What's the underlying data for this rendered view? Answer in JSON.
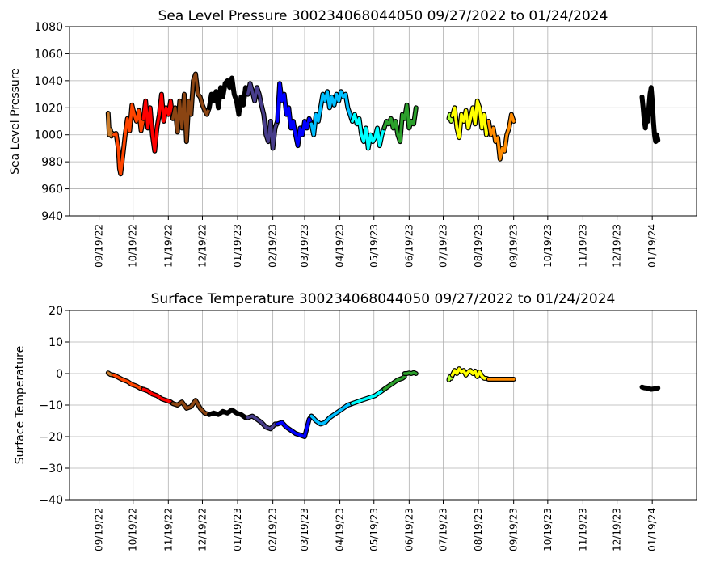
{
  "chart_data": [
    {
      "type": "line",
      "title": "Sea Level Pressure 300234068044050  09/27/2022 to 01/24/2024",
      "ylabel": "Sea Level Pressure",
      "xlabel": "",
      "ylim": [
        940,
        1080
      ],
      "yticks": [
        940,
        960,
        980,
        1000,
        1020,
        1040,
        1060,
        1080
      ],
      "xticks": [
        "09/19/22",
        "10/19/22",
        "11/19/22",
        "12/19/22",
        "01/19/23",
        "02/19/23",
        "03/19/23",
        "04/19/23",
        "05/19/23",
        "06/19/23",
        "07/19/23",
        "08/19/23",
        "09/19/23",
        "10/19/23",
        "11/19/23",
        "12/19/23",
        "01/19/24"
      ],
      "grid": true,
      "series": [
        {
          "color": "#c97b2a",
          "x": [
            "09/27/22",
            "09/28/22",
            "09/29/22",
            "09/30/22",
            "10/01/22",
            "10/02/22"
          ],
          "y": [
            1016,
            1000,
            1004,
            999,
            1001,
            1000
          ]
        },
        {
          "color": "#ff4500",
          "x": [
            "10/02/22",
            "10/04/22",
            "10/06/22",
            "10/07/22",
            "10/08/22",
            "10/10/22",
            "10/12/22",
            "10/14/22",
            "10/16/22",
            "10/18/22",
            "10/20/22",
            "10/22/22",
            "10/24/22",
            "10/26/22",
            "10/28/22"
          ],
          "y": [
            1000,
            1001,
            990,
            975,
            971,
            985,
            1000,
            1012,
            1003,
            1022,
            1015,
            1010,
            1018,
            1003,
            1012
          ]
        },
        {
          "color": "#ff0000",
          "x": [
            "10/28/22",
            "10/30/22",
            "11/01/22",
            "11/03/22",
            "11/05/22",
            "11/07/22",
            "11/09/22",
            "11/11/22",
            "11/13/22",
            "11/15/22",
            "11/17/22",
            "11/19/22",
            "11/21/22",
            "11/23/22"
          ],
          "y": [
            1012,
            1025,
            1005,
            1020,
            1000,
            988,
            1005,
            1015,
            1030,
            1010,
            1020,
            1015,
            1025,
            1012
          ]
        },
        {
          "color": "#8b4513",
          "x": [
            "11/23/22",
            "11/25/22",
            "11/27/22",
            "11/29/22",
            "12/01/22",
            "12/03/22",
            "12/05/22",
            "12/07/22",
            "12/09/22",
            "12/11/22",
            "12/13/22",
            "12/15/22",
            "12/17/22",
            "12/19/22",
            "12/21/22",
            "12/23/22",
            "12/25/22"
          ],
          "y": [
            1012,
            1020,
            1002,
            1025,
            1005,
            1030,
            995,
            1025,
            1015,
            1040,
            1045,
            1030,
            1028,
            1022,
            1018,
            1015,
            1020
          ]
        },
        {
          "color": "#000000",
          "x": [
            "12/25/22",
            "12/27/22",
            "12/29/22",
            "12/31/22",
            "01/02/23",
            "01/04/23",
            "01/06/23",
            "01/08/23",
            "01/10/23",
            "01/12/23",
            "01/14/23",
            "01/16/23",
            "01/18/23",
            "01/20/23",
            "01/22/23",
            "01/24/23",
            "01/26/23",
            "01/28/23"
          ],
          "y": [
            1020,
            1030,
            1025,
            1032,
            1020,
            1035,
            1028,
            1038,
            1040,
            1035,
            1042,
            1030,
            1025,
            1015,
            1028,
            1022,
            1035,
            1030
          ]
        },
        {
          "color": "#483d8b",
          "x": [
            "01/28/23",
            "01/30/23",
            "02/01/23",
            "02/03/23",
            "02/05/23",
            "02/07/23",
            "02/09/23",
            "02/11/23",
            "02/13/23",
            "02/15/23",
            "02/17/23",
            "02/19/23",
            "02/21/23",
            "02/23/23"
          ],
          "y": [
            1030,
            1038,
            1032,
            1025,
            1035,
            1030,
            1022,
            1015,
            1000,
            995,
            1010,
            990,
            1005,
            1010
          ]
        },
        {
          "color": "#0000ff",
          "x": [
            "02/23/23",
            "02/25/23",
            "02/27/23",
            "03/01/23",
            "03/03/23",
            "03/05/23",
            "03/07/23",
            "03/09/23",
            "03/11/23",
            "03/13/23",
            "03/15/23",
            "03/17/23",
            "03/19/23",
            "03/21/23",
            "03/23/23",
            "03/25/23"
          ],
          "y": [
            1010,
            1038,
            1025,
            1030,
            1015,
            1020,
            1005,
            1010,
            1000,
            992,
            1005,
            1000,
            1010,
            1005,
            1012,
            1008
          ]
        },
        {
          "color": "#00bfff",
          "x": [
            "03/25/23",
            "03/27/23",
            "03/29/23",
            "03/31/23",
            "04/02/23",
            "04/04/23",
            "04/06/23",
            "04/08/23",
            "04/10/23",
            "04/12/23",
            "04/14/23",
            "04/16/23",
            "04/18/23",
            "04/20/23",
            "04/22/23",
            "04/24/23",
            "04/26/23",
            "04/28/23",
            "04/30/23"
          ],
          "y": [
            1008,
            1000,
            1015,
            1010,
            1020,
            1030,
            1025,
            1032,
            1020,
            1028,
            1022,
            1030,
            1025,
            1032,
            1028,
            1030,
            1020,
            1015,
            1010
          ]
        },
        {
          "color": "#00ffff",
          "x": [
            "04/30/23",
            "05/02/23",
            "05/04/23",
            "05/06/23",
            "05/08/23",
            "05/10/23",
            "05/12/23",
            "05/14/23",
            "05/16/23",
            "05/18/23",
            "05/20/23",
            "05/22/23",
            "05/24/23",
            "05/26/23",
            "05/28/23"
          ],
          "y": [
            1010,
            1015,
            1008,
            1012,
            1000,
            995,
            1005,
            990,
            1000,
            995,
            998,
            1005,
            992,
            1000,
            1005
          ]
        },
        {
          "color": "#2ca02c",
          "x": [
            "05/28/23",
            "05/30/23",
            "06/01/23",
            "06/03/23",
            "06/05/23",
            "06/07/23",
            "06/09/23",
            "06/11/23",
            "06/13/23",
            "06/15/23",
            "06/17/23",
            "06/19/23",
            "06/21/23",
            "06/23/23",
            "06/25/23"
          ],
          "y": [
            1005,
            1010,
            1008,
            1012,
            1005,
            1010,
            1000,
            995,
            1015,
            1012,
            1022,
            1005,
            1010,
            1008,
            1020
          ]
        },
        {
          "color": "#adff2f",
          "x": [
            "07/24/23",
            "07/25/23",
            "07/26/23",
            "07/27/23"
          ],
          "y": [
            1012,
            1015,
            1010,
            1014
          ]
        },
        {
          "color": "#ffff00",
          "x": [
            "07/27/23",
            "07/29/23",
            "07/31/23",
            "08/02/23",
            "08/04/23",
            "08/06/23",
            "08/08/23",
            "08/10/23",
            "08/12/23",
            "08/14/23",
            "08/16/23",
            "08/18/23",
            "08/20/23",
            "08/22/23",
            "08/24/23",
            "08/26/23",
            "08/28/23"
          ],
          "y": [
            1014,
            1020,
            1005,
            998,
            1015,
            1010,
            1018,
            1005,
            1012,
            1020,
            1008,
            1025,
            1020,
            1005,
            1015,
            1000,
            1010
          ]
        },
        {
          "color": "#ff8c00",
          "x": [
            "08/28/23",
            "08/30/23",
            "09/01/23",
            "09/03/23",
            "09/05/23",
            "09/07/23",
            "09/09/23",
            "09/11/23",
            "09/13/23",
            "09/15/23",
            "09/17/23",
            "09/19/23"
          ],
          "y": [
            1010,
            1000,
            1005,
            995,
            998,
            982,
            990,
            988,
            1000,
            1005,
            1015,
            1010
          ]
        },
        {
          "color": "#000000",
          "x": [
            "01/10/24",
            "01/11/24",
            "01/12/24",
            "01/13/24",
            "01/14/24",
            "01/15/24",
            "01/16/24",
            "01/17/24",
            "01/18/24",
            "01/19/24",
            "01/20/24",
            "01/21/24",
            "01/22/24",
            "01/23/24",
            "01/24/24"
          ],
          "y": [
            1028,
            1020,
            1010,
            1005,
            1015,
            1010,
            1020,
            1030,
            1035,
            1025,
            1010,
            1000,
            995,
            1000,
            996
          ]
        }
      ]
    },
    {
      "type": "line",
      "title": "Surface Temperature 300234068044050  09/27/2022 to 01/24/2024",
      "ylabel": "Surface Temperature",
      "xlabel": "",
      "ylim": [
        -40,
        20
      ],
      "yticks": [
        -40,
        -30,
        -20,
        -10,
        0,
        10,
        20
      ],
      "xticks": [
        "09/19/22",
        "10/19/22",
        "11/19/22",
        "12/19/22",
        "01/19/23",
        "02/19/23",
        "03/19/23",
        "04/19/23",
        "05/19/23",
        "06/19/23",
        "07/19/23",
        "08/19/23",
        "09/19/23",
        "10/19/23",
        "11/19/23",
        "12/19/23",
        "01/19/24"
      ],
      "grid": true,
      "series": [
        {
          "color": "#c97b2a",
          "x": [
            "09/27/22",
            "09/29/22",
            "10/02/22"
          ],
          "y": [
            0.2,
            -0.3,
            -0.5
          ]
        },
        {
          "color": "#ff4500",
          "x": [
            "10/02/22",
            "10/06/22",
            "10/10/22",
            "10/14/22",
            "10/18/22",
            "10/22/22",
            "10/26/22",
            "10/28/22"
          ],
          "y": [
            -0.5,
            -1.2,
            -2,
            -2.5,
            -3.5,
            -4,
            -4.8,
            -5
          ]
        },
        {
          "color": "#ff0000",
          "x": [
            "10/28/22",
            "11/01/22",
            "11/05/22",
            "11/09/22",
            "11/13/22",
            "11/17/22",
            "11/21/22",
            "11/23/22"
          ],
          "y": [
            -5,
            -5.5,
            -6.5,
            -7,
            -8,
            -8.5,
            -9,
            -9.5
          ]
        },
        {
          "color": "#8b4513",
          "x": [
            "11/23/22",
            "11/27/22",
            "12/01/22",
            "12/05/22",
            "12/09/22",
            "12/13/22",
            "12/17/22",
            "12/21/22",
            "12/25/22"
          ],
          "y": [
            -9.5,
            -10,
            -9,
            -11,
            -10.5,
            -8.5,
            -11,
            -12.5,
            -13
          ]
        },
        {
          "color": "#000000",
          "x": [
            "12/25/22",
            "12/29/22",
            "01/02/23",
            "01/06/23",
            "01/10/23",
            "01/14/23",
            "01/18/23",
            "01/22/23",
            "01/26/23",
            "01/28/23"
          ],
          "y": [
            -13,
            -12.5,
            -13,
            -12,
            -12.5,
            -11.5,
            -12.5,
            -13,
            -14,
            -14
          ]
        },
        {
          "color": "#483d8b",
          "x": [
            "01/28/23",
            "02/01/23",
            "02/05/23",
            "02/09/23",
            "02/13/23",
            "02/17/23",
            "02/21/23",
            "02/23/23"
          ],
          "y": [
            -14,
            -13.5,
            -14.5,
            -15.5,
            -17,
            -17.5,
            -16,
            -16
          ]
        },
        {
          "color": "#0000ff",
          "x": [
            "02/23/23",
            "02/27/23",
            "03/03/23",
            "03/07/23",
            "03/11/23",
            "03/15/23",
            "03/19/23",
            "03/23/23",
            "03/25/23"
          ],
          "y": [
            -16,
            -15.5,
            -17,
            -18,
            -19,
            -19.5,
            -20,
            -14.5,
            -13.5
          ]
        },
        {
          "color": "#00bfff",
          "x": [
            "03/25/23",
            "03/29/23",
            "04/02/23",
            "04/06/23",
            "04/10/23",
            "04/14/23",
            "04/18/23",
            "04/22/23",
            "04/26/23",
            "04/30/23"
          ],
          "y": [
            -13.5,
            -15,
            -16,
            -15.5,
            -14,
            -13,
            -12,
            -11,
            -10,
            -9.5
          ]
        },
        {
          "color": "#00ffff",
          "x": [
            "04/30/23",
            "05/04/23",
            "05/08/23",
            "05/12/23",
            "05/16/23",
            "05/20/23",
            "05/24/23",
            "05/28/23"
          ],
          "y": [
            -9.5,
            -9,
            -8.5,
            -8,
            -7.5,
            -7,
            -6,
            -5
          ]
        },
        {
          "color": "#2ca02c",
          "x": [
            "05/28/23",
            "06/01/23",
            "06/05/23",
            "06/09/23",
            "06/13/23",
            "06/15/23"
          ],
          "y": [
            -5,
            -4,
            -3,
            -2,
            -1.5,
            -1
          ]
        },
        {
          "color": "#2ca02c",
          "x": [
            "06/15/23",
            "06/17/23",
            "06/19/23",
            "06/21/23",
            "06/23/23",
            "06/25/23"
          ],
          "y": [
            0,
            0,
            0.2,
            0,
            0.3,
            0
          ]
        },
        {
          "color": "#adff2f",
          "x": [
            "07/24/23",
            "07/25/23",
            "07/26/23",
            "07/27/23"
          ],
          "y": [
            -2,
            -1,
            -1.5,
            -0.5
          ]
        },
        {
          "color": "#ffff00",
          "x": [
            "07/27/23",
            "07/29/23",
            "07/31/23",
            "08/02/23",
            "08/04/23",
            "08/06/23",
            "08/08/23",
            "08/10/23",
            "08/12/23",
            "08/14/23",
            "08/16/23",
            "08/18/23",
            "08/20/23",
            "08/22/23",
            "08/24/23",
            "08/26/23",
            "08/28/23"
          ],
          "y": [
            -0.5,
            1,
            0,
            1.5,
            0.5,
            1,
            -0.5,
            0.5,
            1,
            0,
            0.8,
            -1,
            0.5,
            -0.8,
            -1.5,
            -1.5,
            -1.8
          ]
        },
        {
          "color": "#ff8c00",
          "x": [
            "08/28/23",
            "09/01/23",
            "09/05/23",
            "09/09/23",
            "09/13/23",
            "09/17/23",
            "09/19/23"
          ],
          "y": [
            -1.8,
            -1.8,
            -1.8,
            -1.8,
            -1.8,
            -1.8,
            -1.8
          ]
        },
        {
          "color": "#000000",
          "x": [
            "01/10/24",
            "01/12/24",
            "01/14/24",
            "01/16/24",
            "01/18/24",
            "01/20/24",
            "01/22/24",
            "01/24/24"
          ],
          "y": [
            -4.3,
            -4.5,
            -4.6,
            -4.8,
            -5,
            -4.9,
            -4.8,
            -4.6
          ]
        }
      ]
    }
  ]
}
